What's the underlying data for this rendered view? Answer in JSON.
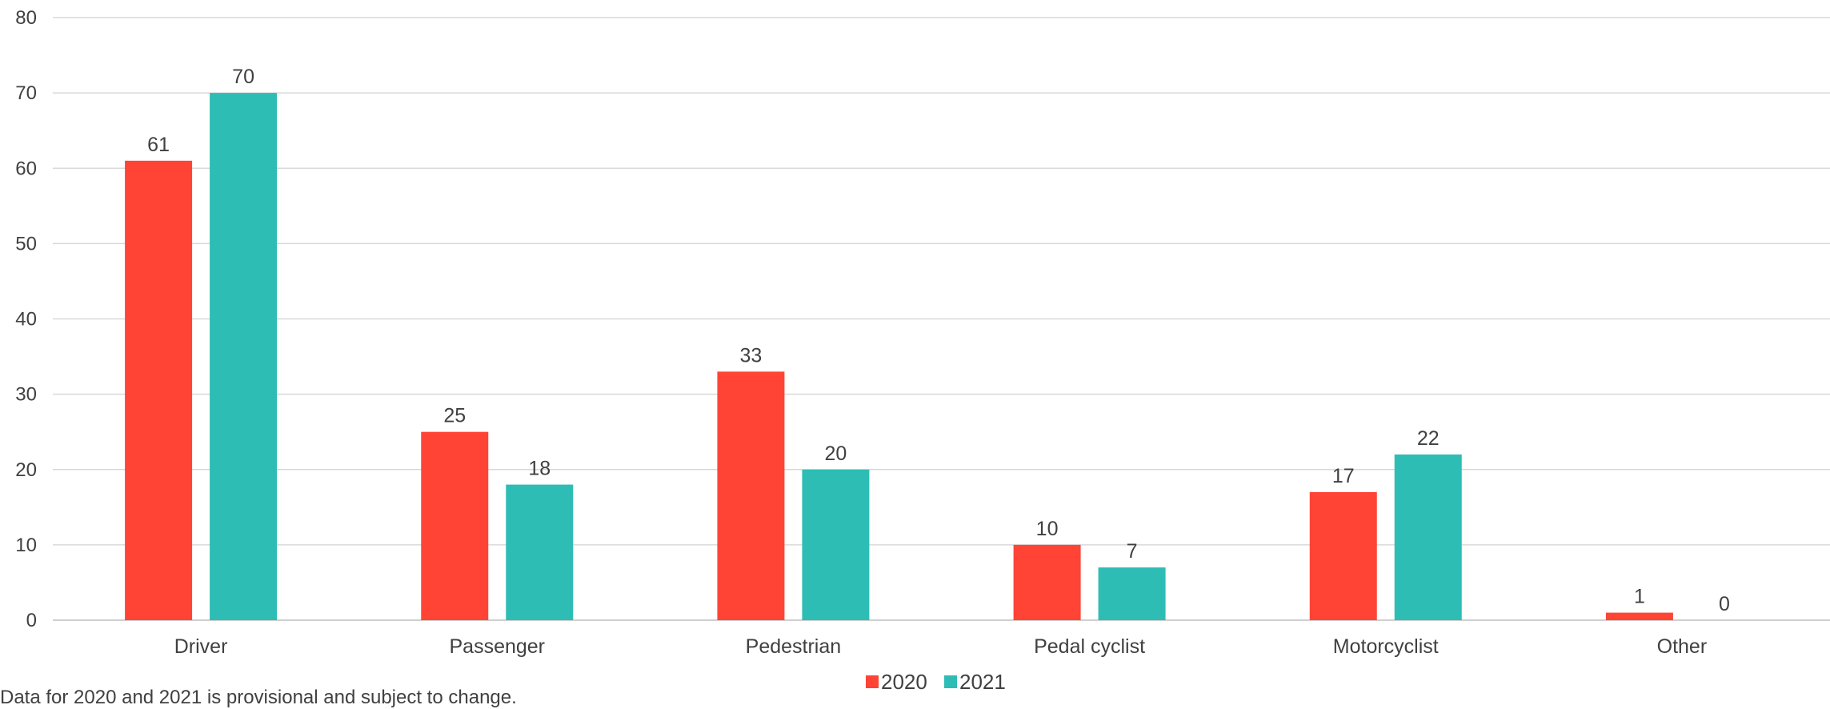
{
  "chart_data": {
    "type": "bar",
    "categories": [
      "Driver",
      "Passenger",
      "Pedestrian",
      "Pedal cyclist",
      "Motorcyclist",
      "Other"
    ],
    "series": [
      {
        "name": "2020",
        "color": "#ff4436",
        "values": [
          61,
          25,
          33,
          10,
          17,
          1
        ]
      },
      {
        "name": "2021",
        "color": "#2ebdb5",
        "values": [
          70,
          18,
          20,
          7,
          22,
          0
        ]
      }
    ],
    "yticks": [
      0,
      10,
      20,
      30,
      40,
      50,
      60,
      70,
      80
    ],
    "ylim": [
      0,
      80
    ],
    "grid": true,
    "legend": "bottom-center",
    "data_labels": true
  },
  "footnote": "Data for 2020 and 2021 is provisional and subject to change."
}
